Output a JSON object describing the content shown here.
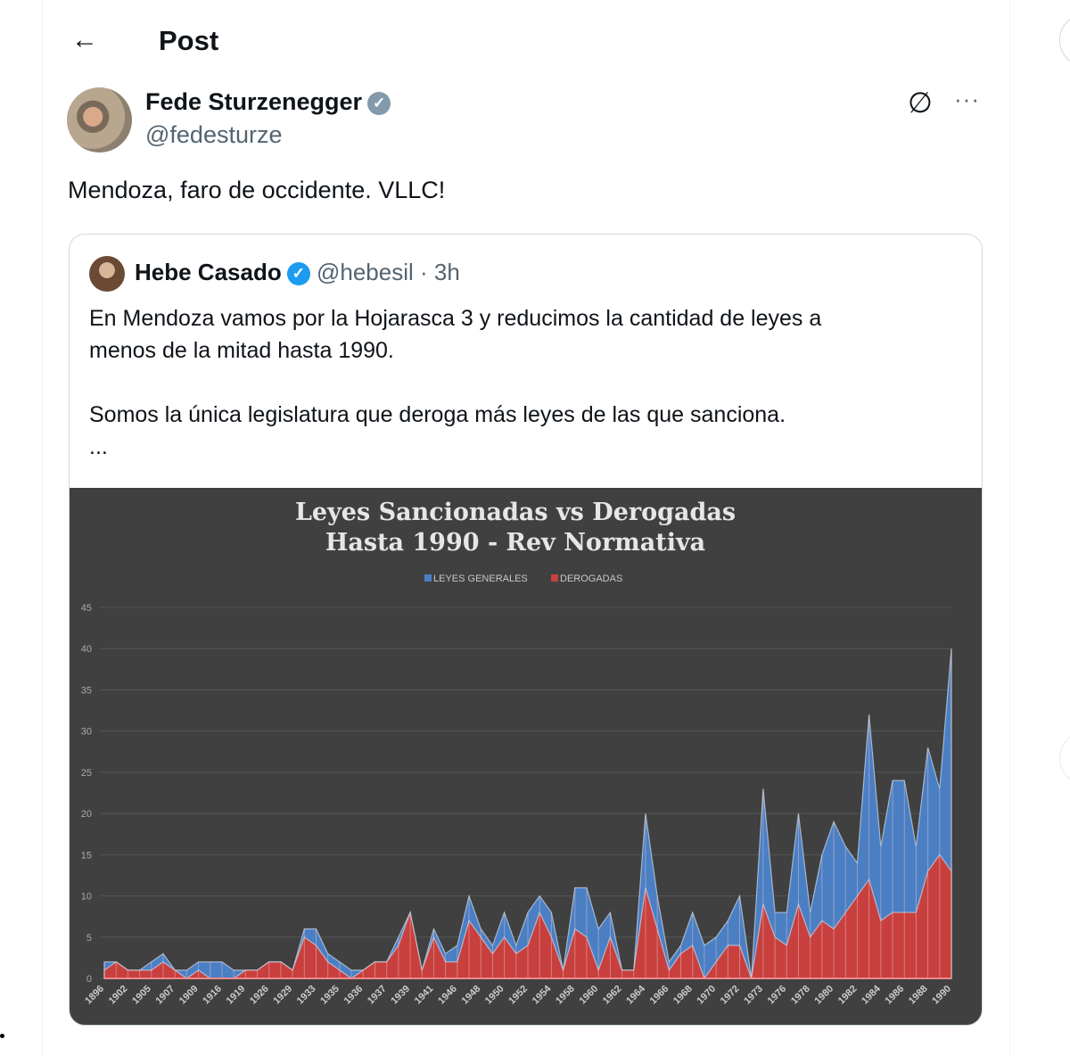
{
  "header": {
    "title": "Post",
    "back_icon": "arrow-left-icon"
  },
  "post": {
    "author": {
      "name": "Fede Sturzenegger",
      "handle": "@fedesturze",
      "verified_color": "#829aab"
    },
    "text": "Mendoza, faro de occidente. VLLC!",
    "actions": {
      "grok_icon": "grok-icon",
      "more_icon": "more-icon",
      "more_label": "···",
      "grok_label": "∅"
    }
  },
  "quote": {
    "author": {
      "name": "Hebe Casado",
      "handle": "@hebesil",
      "time": "3h",
      "sep": "·",
      "verified_color": "#1d9bf0"
    },
    "text": "En Mendoza vamos por la Hojarasca 3 y reducimos la cantidad de leyes a\nmenos de la mitad hasta 1990.\n\nSomos la única legislatura que deroga más leyes de las que sanciona.\n..."
  },
  "chart_data": {
    "type": "area",
    "title": "Leyes Sancionadas vs Derogadas\nHasta 1990 - Rev Normativa",
    "title_lines": [
      "Leyes Sancionadas vs Derogadas",
      "Hasta 1990 - Rev Normativa"
    ],
    "legend_position": "top",
    "grid": true,
    "ylim": [
      0,
      45
    ],
    "yticks": [
      0,
      5,
      10,
      15,
      20,
      25,
      30,
      35,
      40,
      45
    ],
    "xtick_labels": [
      "1896",
      "1902",
      "1905",
      "1907",
      "1909",
      "1916",
      "1919",
      "1926",
      "1929",
      "1933",
      "1935",
      "1936",
      "1937",
      "1939",
      "1941",
      "1946",
      "1948",
      "1950",
      "1952",
      "1954",
      "1958",
      "1960",
      "1962",
      "1964",
      "1966",
      "1968",
      "1970",
      "1972",
      "1973",
      "1976",
      "1978",
      "1980",
      "1982",
      "1984",
      "1986",
      "1988",
      "1990"
    ],
    "series": [
      {
        "name": "LEYES GENERALES",
        "color": "#4a7fc4",
        "values": [
          2,
          2,
          1,
          1,
          2,
          3,
          1,
          1,
          2,
          2,
          2,
          1,
          1,
          1,
          2,
          2,
          1,
          6,
          6,
          3,
          2,
          1,
          1,
          2,
          2,
          5,
          8,
          1,
          6,
          3,
          4,
          10,
          6,
          4,
          8,
          4,
          8,
          10,
          8,
          1,
          11,
          11,
          6,
          8,
          1,
          1,
          20,
          10,
          2,
          4,
          8,
          4,
          5,
          7,
          10,
          0,
          23,
          8,
          8,
          20,
          8,
          15,
          19,
          16,
          14,
          32,
          16,
          24,
          24,
          16,
          28,
          23,
          40
        ]
      },
      {
        "name": "DEROGADAS",
        "color": "#c8403e",
        "values": [
          1,
          2,
          1,
          1,
          1,
          2,
          1,
          0,
          1,
          0,
          0,
          0,
          1,
          1,
          2,
          2,
          1,
          5,
          4,
          2,
          1,
          0,
          1,
          2,
          2,
          4,
          8,
          1,
          5,
          2,
          2,
          7,
          5,
          3,
          5,
          3,
          4,
          8,
          5,
          1,
          6,
          5,
          1,
          5,
          1,
          1,
          11,
          6,
          1,
          3,
          4,
          0,
          2,
          4,
          4,
          0,
          9,
          5,
          4,
          9,
          5,
          7,
          6,
          8,
          10,
          12,
          7,
          8,
          8,
          8,
          13,
          15,
          13
        ]
      }
    ]
  }
}
